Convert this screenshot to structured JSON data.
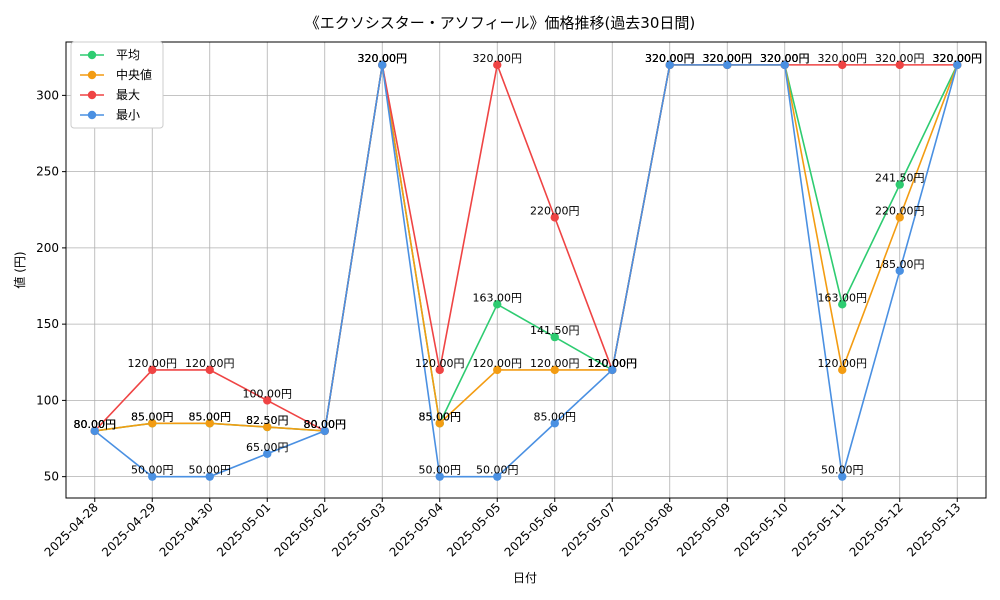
{
  "chart_data": {
    "type": "line",
    "title": "《エクソシスター・アソフィール》価格推移(過去30日間)",
    "xlabel": "日付",
    "ylabel": "値 (円)",
    "ylim": [
      36,
      335
    ],
    "yticks": [
      50,
      100,
      150,
      200,
      250,
      300
    ],
    "grid": true,
    "legend_position": "top-left",
    "label_suffix": "円",
    "categories": [
      "2025-04-28",
      "2025-04-29",
      "2025-04-30",
      "2025-05-01",
      "2025-05-02",
      "2025-05-03",
      "2025-05-04",
      "2025-05-05",
      "2025-05-06",
      "2025-05-07",
      "2025-05-08",
      "2025-05-09",
      "2025-05-10",
      "2025-05-11",
      "2025-05-12",
      "2025-05-13"
    ],
    "series": [
      {
        "name": "平均",
        "color": "#2ecc71",
        "values": [
          80,
          85,
          85,
          82.5,
          80,
          320,
          85,
          163,
          141.5,
          120,
          320,
          320,
          320,
          163,
          241.5,
          320
        ]
      },
      {
        "name": "中央値",
        "color": "#f39c12",
        "values": [
          80,
          85,
          85,
          82.5,
          80,
          320,
          85,
          120,
          120,
          120,
          320,
          320,
          320,
          120,
          220,
          320
        ]
      },
      {
        "name": "最大",
        "color": "#ef4444",
        "values": [
          80,
          120,
          120,
          100,
          80,
          320,
          120,
          320,
          220,
          120,
          320,
          320,
          320,
          320,
          320,
          320
        ]
      },
      {
        "name": "最小",
        "color": "#4a90e2",
        "values": [
          80,
          50,
          50,
          65,
          80,
          320,
          50,
          50,
          85,
          120,
          320,
          320,
          320,
          50,
          185,
          320
        ]
      }
    ]
  }
}
